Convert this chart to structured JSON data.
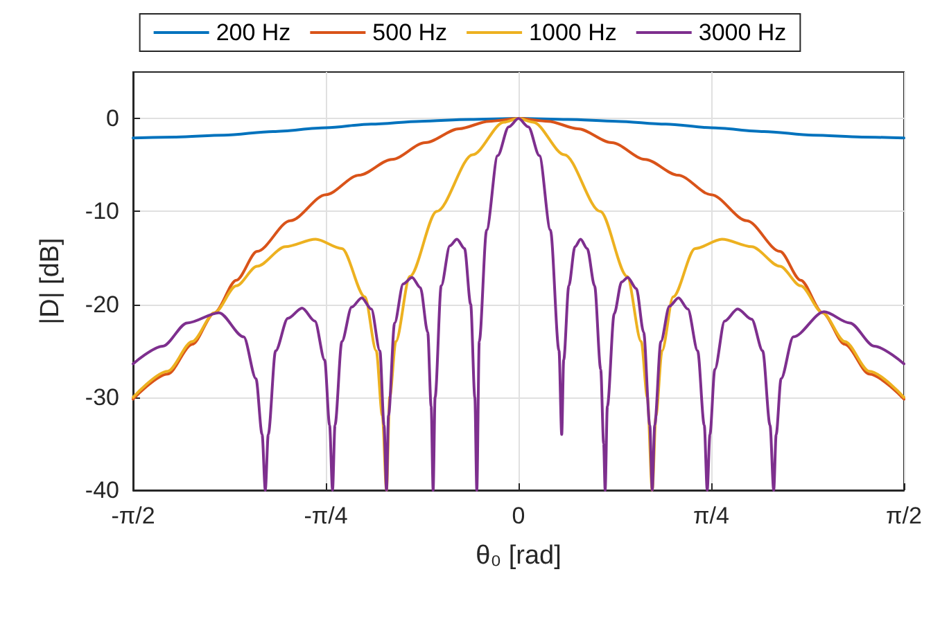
{
  "chart_data": {
    "type": "line",
    "xlabel": "θ₀ [rad]",
    "ylabel": "|D| [dB]",
    "xlim": [
      -1.5708,
      1.5708
    ],
    "ylim": [
      -40,
      5
    ],
    "xticks": [
      {
        "value": -1.5708,
        "label": "-π/2"
      },
      {
        "value": -0.7854,
        "label": "-π/4"
      },
      0,
      {
        "value": 0.7854,
        "label": "π/4"
      },
      {
        "value": 1.5708,
        "label": "π/2"
      }
    ],
    "yticks": [
      -40,
      -30,
      -20,
      -10,
      0
    ],
    "grid": true,
    "legend": "top",
    "series": [
      {
        "name": "200 Hz",
        "color": "#0072bd",
        "x": [
          -1.5708,
          -1.4,
          -1.2,
          -1.0,
          -0.785,
          -0.6,
          -0.4,
          -0.2,
          0,
          0.2,
          0.4,
          0.6,
          0.785,
          1.0,
          1.2,
          1.4,
          1.5708
        ],
        "values": [
          -2.1,
          -2,
          -1.8,
          -1.4,
          -1,
          -0.6,
          -0.3,
          -0.1,
          0,
          -0.1,
          -0.3,
          -0.6,
          -1,
          -1.4,
          -1.8,
          -2,
          -2.1
        ]
      },
      {
        "name": "500 Hz",
        "color": "#d95319",
        "x": [
          -1.5708,
          -1.43,
          -1.33,
          -1.239,
          -1.15,
          -1.065,
          -0.93,
          -0.785,
          -0.65,
          -0.516,
          -0.38,
          -0.242,
          -0.12,
          0,
          0.12,
          0.242,
          0.38,
          0.516,
          0.65,
          0.785,
          0.93,
          1.065,
          1.15,
          1.239,
          1.33,
          1.43,
          1.5708
        ],
        "values": [
          -30.2,
          -27.5,
          -24.3,
          -20.9,
          -17.4,
          -14.3,
          -11,
          -8.2,
          -6.1,
          -4.4,
          -2.6,
          -1.1,
          -0.3,
          0,
          -0.3,
          -1.1,
          -2.6,
          -4.4,
          -6.1,
          -8.2,
          -11,
          -14.3,
          -17.4,
          -20.9,
          -24.3,
          -27.5,
          -30.2
        ]
      },
      {
        "name": "1000 Hz",
        "color": "#edb120",
        "x": [
          -1.5708,
          -1.43,
          -1.33,
          -1.239,
          -1.15,
          -1.065,
          -0.95,
          -0.827,
          -0.72,
          -0.626,
          -0.58,
          -0.555,
          -0.538,
          -0.525,
          -0.5,
          -0.443,
          -0.333,
          -0.187,
          -0.06,
          0,
          0.06,
          0.187,
          0.333,
          0.443,
          0.5,
          0.525,
          0.545,
          0.56,
          0.585,
          0.63,
          0.72,
          0.829,
          0.95,
          1.065,
          1.15,
          1.239,
          1.33,
          1.43,
          1.5708
        ],
        "values": [
          -30,
          -27.2,
          -24,
          -20.9,
          -18,
          -15.9,
          -13.8,
          -13,
          -14,
          -19.2,
          -25,
          -32,
          -40,
          -30,
          -24,
          -17,
          -10,
          -3.9,
          -0.4,
          0,
          -0.4,
          -3.9,
          -10,
          -17,
          -24,
          -30,
          -40,
          -32,
          -25,
          -19.2,
          -14,
          -13,
          -13.8,
          -15.9,
          -18,
          -20.9,
          -24,
          -27.2,
          -30
        ]
      },
      {
        "name": "3000 Hz",
        "color": "#7e2f8e",
        "x": [
          -1.5708,
          -1.45,
          -1.35,
          -1.221,
          -1.12,
          -1.07,
          -1.045,
          -1.032,
          -1.02,
          -0.99,
          -0.94,
          -0.882,
          -0.83,
          -0.79,
          -0.77,
          -0.758,
          -0.748,
          -0.72,
          -0.68,
          -0.639,
          -0.6,
          -0.565,
          -0.548,
          -0.538,
          -0.53,
          -0.505,
          -0.47,
          -0.434,
          -0.4,
          -0.37,
          -0.356,
          -0.348,
          -0.34,
          -0.315,
          -0.28,
          -0.251,
          -0.22,
          -0.195,
          -0.178,
          -0.17,
          -0.16,
          -0.13,
          -0.085,
          -0.04,
          0,
          0.04,
          0.085,
          0.13,
          0.165,
          0.176,
          0.184,
          0.205,
          0.23,
          0.253,
          0.28,
          0.31,
          0.335,
          0.347,
          0.353,
          0.362,
          0.39,
          0.42,
          0.445,
          0.48,
          0.51,
          0.535,
          0.545,
          0.555,
          0.58,
          0.615,
          0.652,
          0.69,
          0.73,
          0.757,
          0.769,
          0.78,
          0.8,
          0.84,
          0.893,
          0.95,
          0.995,
          1.025,
          1.04,
          1.05,
          1.07,
          1.12,
          1.245,
          1.35,
          1.45,
          1.5708
        ],
        "values": [
          -26.4,
          -24.5,
          -22,
          -20.9,
          -23.5,
          -28,
          -34,
          -40,
          -34,
          -25,
          -21.5,
          -20.4,
          -21.8,
          -26,
          -33,
          -40,
          -33,
          -24,
          -20.3,
          -19.3,
          -20.5,
          -25,
          -33,
          -40,
          -32,
          -22,
          -17.8,
          -17.1,
          -18.2,
          -23,
          -31,
          -40,
          -30,
          -18,
          -13.7,
          -13,
          -14,
          -20,
          -30,
          -40,
          -24,
          -12,
          -4,
          -0.9,
          0,
          -0.9,
          -4,
          -12,
          -25,
          -34,
          -26,
          -18,
          -13.8,
          -13,
          -14,
          -18,
          -27,
          -35,
          -40,
          -31,
          -21,
          -17.6,
          -17.1,
          -18.3,
          -23,
          -33,
          -40,
          -33,
          -24,
          -20.2,
          -19.3,
          -20.5,
          -25,
          -33,
          -40,
          -34,
          -27,
          -21.8,
          -20.5,
          -21.6,
          -25,
          -33,
          -40,
          -34,
          -28,
          -23.5,
          -20.8,
          -22,
          -24.5,
          -26.4
        ]
      }
    ]
  }
}
